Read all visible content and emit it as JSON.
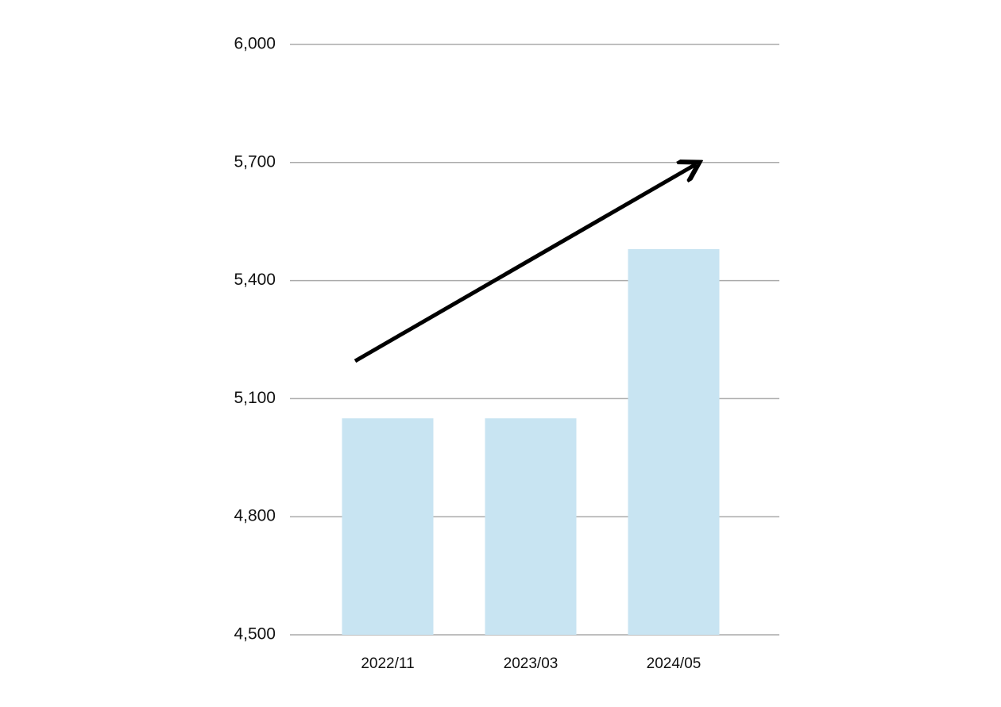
{
  "chart_data": {
    "type": "bar",
    "categories": [
      "2022/11",
      "2023/03",
      "2024/05"
    ],
    "values": [
      5050,
      5050,
      5480
    ],
    "color": "#c8e4f2",
    "ylim": [
      4500,
      6000
    ],
    "yticks": [
      {
        "value": 4500,
        "label": "4,500"
      },
      {
        "value": 4800,
        "label": "4,800"
      },
      {
        "value": 5100,
        "label": "5,100"
      },
      {
        "value": 5400,
        "label": "5,400"
      },
      {
        "value": 5700,
        "label": "5,700"
      },
      {
        "value": 6000,
        "label": "6,000"
      }
    ],
    "grid": true
  }
}
